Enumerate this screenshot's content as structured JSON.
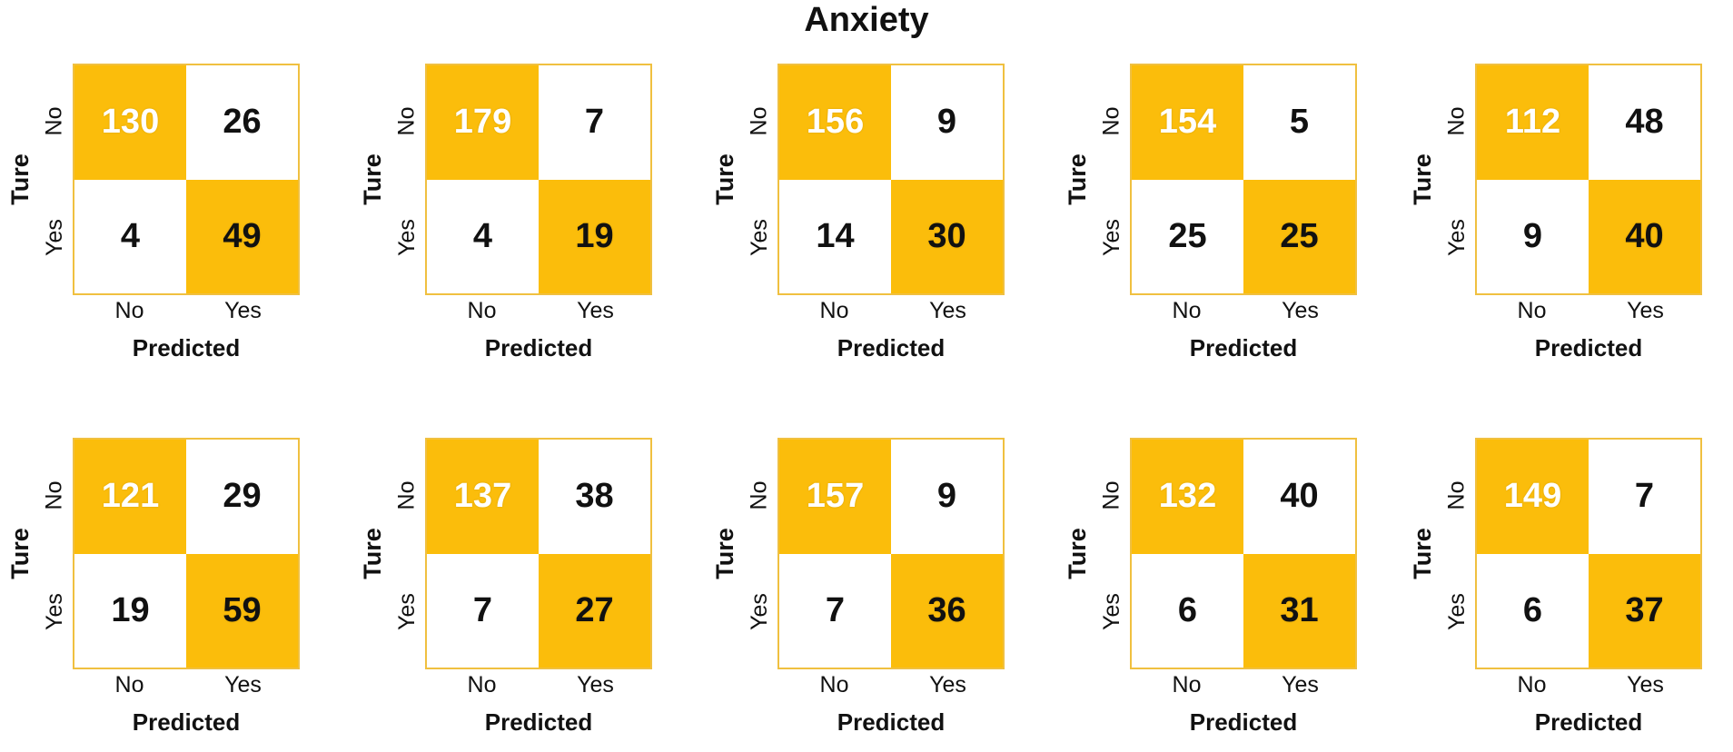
{
  "title": "Anxiety",
  "colors": {
    "accent": "#fbbd0b",
    "border": "#f0c040"
  },
  "chart_data": {
    "type": "heatmap",
    "title": "Anxiety",
    "xlabel": "Predicted",
    "ylabel": "Ture",
    "x_categories": [
      "No",
      "Yes"
    ],
    "y_categories": [
      "No",
      "Yes"
    ],
    "matrices": [
      [
        [
          130,
          26
        ],
        [
          4,
          49
        ]
      ],
      [
        [
          179,
          7
        ],
        [
          4,
          19
        ]
      ],
      [
        [
          156,
          9
        ],
        [
          14,
          30
        ]
      ],
      [
        [
          154,
          5
        ],
        [
          25,
          25
        ]
      ],
      [
        [
          112,
          48
        ],
        [
          9,
          40
        ]
      ],
      [
        [
          121,
          29
        ],
        [
          19,
          59
        ]
      ],
      [
        [
          137,
          38
        ],
        [
          7,
          27
        ]
      ],
      [
        [
          157,
          9
        ],
        [
          7,
          36
        ]
      ],
      [
        [
          132,
          40
        ],
        [
          6,
          31
        ]
      ],
      [
        [
          149,
          7
        ],
        [
          6,
          37
        ]
      ]
    ]
  }
}
